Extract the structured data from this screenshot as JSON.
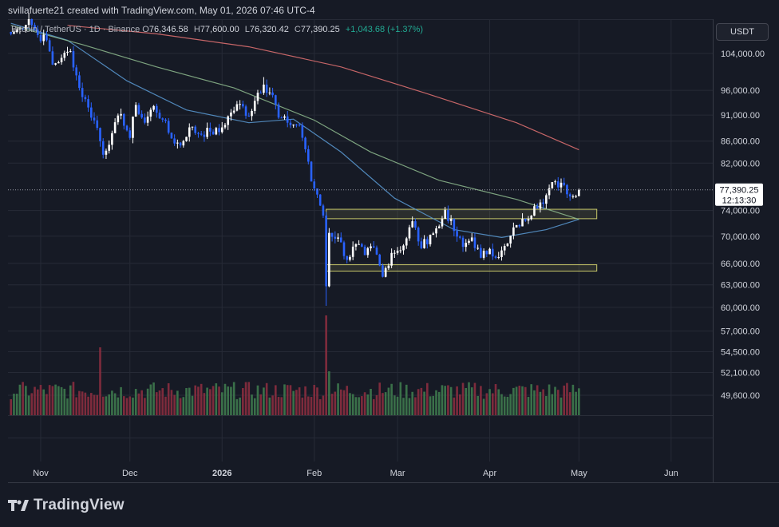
{
  "header": {
    "attribution": "svillafuerte21 created with TradingView.com, May 01, 2026 07:46 UTC-4",
    "symbol": "Bitcoin / TetherUS · 1D · Binance",
    "open_label": "O",
    "open": "76,346.58",
    "high_label": "H",
    "high": "77,600.00",
    "low_label": "L",
    "low": "76,320.42",
    "close_label": "C",
    "close": "77,390.25",
    "change": "+1,043.68 (+1.37%)"
  },
  "currency": "USDT",
  "brand": "TradingView",
  "colors": {
    "up": "#ffffff",
    "down": "#2962ff",
    "ma_fast": "#5b9bd5",
    "ma_mid": "#8fbc8f",
    "ma_slow": "#e57373",
    "vol_up": "#3e7a4e",
    "vol_down": "#8a2e3f",
    "box": "#c8c86a",
    "grid": "#262a36"
  },
  "chart_data": {
    "type": "candlestick",
    "symbol": "BTCUSDT",
    "interval": "1D",
    "y_axis": {
      "scale": "log",
      "ticks": [
        104000,
        96000,
        91000,
        86000,
        82000,
        74000,
        70000,
        66000,
        63000,
        60000,
        57000,
        54500,
        52100,
        49600
      ],
      "tick_labels": [
        "104,000.00",
        "96,000.00",
        "91,000.00",
        "86,000.00",
        "82,000.00",
        "74,000.00",
        "70,000.00",
        "66,000.00",
        "63,000.00",
        "60,000.00",
        "57,000.00",
        "54,500.00",
        "52,100.00",
        "49,600.00"
      ],
      "range": [
        47500,
        112000
      ]
    },
    "x_axis": {
      "labels": [
        "Nov",
        "Dec",
        "2026",
        "Feb",
        "Mar",
        "Apr",
        "May",
        "Jun"
      ],
      "label_dates": [
        "2025-11-01",
        "2025-12-01",
        "2026-01-01",
        "2026-02-01",
        "2026-03-01",
        "2026-04-01",
        "2026-05-01",
        "2026-06-01"
      ],
      "range": [
        "2025-10-21",
        "2026-06-15"
      ]
    },
    "price_anchor_closes": [
      [
        "2025-10-22",
        108500
      ],
      [
        "2025-10-25",
        109800
      ],
      [
        "2025-10-28",
        112000
      ],
      [
        "2025-10-31",
        108200
      ],
      [
        "2025-11-03",
        107000
      ],
      [
        "2025-11-05",
        101500
      ],
      [
        "2025-11-08",
        103000
      ],
      [
        "2025-11-11",
        104500
      ],
      [
        "2025-11-14",
        96500
      ],
      [
        "2025-11-17",
        92500
      ],
      [
        "2025-11-20",
        88500
      ],
      [
        "2025-11-22",
        83500
      ],
      [
        "2025-11-25",
        87500
      ],
      [
        "2025-11-28",
        91200
      ],
      [
        "2025-12-01",
        86600
      ],
      [
        "2025-12-03",
        93000
      ],
      [
        "2025-12-06",
        89500
      ],
      [
        "2025-12-09",
        92800
      ],
      [
        "2025-12-12",
        90100
      ],
      [
        "2025-12-15",
        86500
      ],
      [
        "2025-12-18",
        85200
      ],
      [
        "2025-12-21",
        88600
      ],
      [
        "2025-12-24",
        87400
      ],
      [
        "2025-12-28",
        87800
      ],
      [
        "2025-12-31",
        87700
      ],
      [
        "2026-01-04",
        91500
      ],
      [
        "2026-01-07",
        93200
      ],
      [
        "2026-01-10",
        90800
      ],
      [
        "2026-01-13",
        95500
      ],
      [
        "2026-01-15",
        97200
      ],
      [
        "2026-01-18",
        95000
      ],
      [
        "2026-01-20",
        90500
      ],
      [
        "2026-01-23",
        89500
      ],
      [
        "2026-01-27",
        89000
      ],
      [
        "2026-01-29",
        84500
      ],
      [
        "2026-01-31",
        78800
      ],
      [
        "2026-02-02",
        76600
      ],
      [
        "2026-02-04",
        73200
      ],
      [
        "2026-02-05",
        62800
      ],
      [
        "2026-02-06",
        70500
      ],
      [
        "2026-02-09",
        69800
      ],
      [
        "2026-02-12",
        66500
      ],
      [
        "2026-02-15",
        68800
      ],
      [
        "2026-02-18",
        67200
      ],
      [
        "2026-02-21",
        68300
      ],
      [
        "2026-02-24",
        64100
      ],
      [
        "2026-02-27",
        67500
      ],
      [
        "2026-03-03",
        68600
      ],
      [
        "2026-03-06",
        72300
      ],
      [
        "2026-03-09",
        68200
      ],
      [
        "2026-03-12",
        70200
      ],
      [
        "2026-03-15",
        71500
      ],
      [
        "2026-03-17",
        74100
      ],
      [
        "2026-03-20",
        70800
      ],
      [
        "2026-03-23",
        68400
      ],
      [
        "2026-03-26",
        69800
      ],
      [
        "2026-03-29",
        66800
      ],
      [
        "2026-04-01",
        68100
      ],
      [
        "2026-04-04",
        66900
      ],
      [
        "2026-04-07",
        68900
      ],
      [
        "2026-04-10",
        71700
      ],
      [
        "2026-04-13",
        72400
      ],
      [
        "2026-04-16",
        74700
      ],
      [
        "2026-04-18",
        75300
      ],
      [
        "2026-04-20",
        76500
      ],
      [
        "2026-04-22",
        78700
      ],
      [
        "2026-04-24",
        77800
      ],
      [
        "2026-04-26",
        78200
      ],
      [
        "2026-04-28",
        76300
      ],
      [
        "2026-04-30",
        76346.58
      ],
      [
        "2026-05-01",
        77390.25
      ]
    ],
    "last_candle": {
      "date": "2026-05-01",
      "open": 76346.58,
      "high": 77600.0,
      "low": 76320.42,
      "close": 77390.25
    },
    "moving_averages": [
      {
        "color": "ma_fast",
        "points": [
          [
            "2025-10-22",
            111000
          ],
          [
            "2025-11-10",
            107000
          ],
          [
            "2025-11-30",
            98000
          ],
          [
            "2025-12-20",
            92000
          ],
          [
            "2026-01-10",
            89500
          ],
          [
            "2026-01-25",
            90200
          ],
          [
            "2026-02-10",
            84000
          ],
          [
            "2026-02-28",
            76000
          ],
          [
            "2026-03-20",
            71000
          ],
          [
            "2026-04-05",
            69800
          ],
          [
            "2026-04-20",
            71000
          ],
          [
            "2026-05-01",
            72600
          ]
        ]
      },
      {
        "color": "ma_mid",
        "points": [
          [
            "2025-10-22",
            110500
          ],
          [
            "2025-11-15",
            106000
          ],
          [
            "2025-12-10",
            101000
          ],
          [
            "2026-01-05",
            96500
          ],
          [
            "2026-02-01",
            90000
          ],
          [
            "2026-02-20",
            84000
          ],
          [
            "2026-03-15",
            79000
          ],
          [
            "2026-04-10",
            75800
          ],
          [
            "2026-05-01",
            72600
          ]
        ]
      },
      {
        "color": "ma_slow",
        "points": [
          [
            "2025-11-10",
            110500
          ],
          [
            "2025-12-10",
            108500
          ],
          [
            "2026-01-10",
            105500
          ],
          [
            "2026-02-10",
            101000
          ],
          [
            "2026-03-10",
            95500
          ],
          [
            "2026-04-10",
            89500
          ],
          [
            "2026-05-01",
            84400
          ]
        ]
      }
    ],
    "zones": [
      {
        "from": "2026-02-05",
        "to": "2026-05-07",
        "low": 72700,
        "high": 74200
      },
      {
        "from": "2026-02-05",
        "to": "2026-05-07",
        "low": 64900,
        "high": 65800
      }
    ],
    "current_price": {
      "value": 77390.25,
      "label": "77,390.25",
      "countdown": "12:13:30"
    },
    "volume": {
      "spike_dates": [
        "2025-11-21",
        "2026-02-05",
        "2026-02-06"
      ]
    }
  }
}
